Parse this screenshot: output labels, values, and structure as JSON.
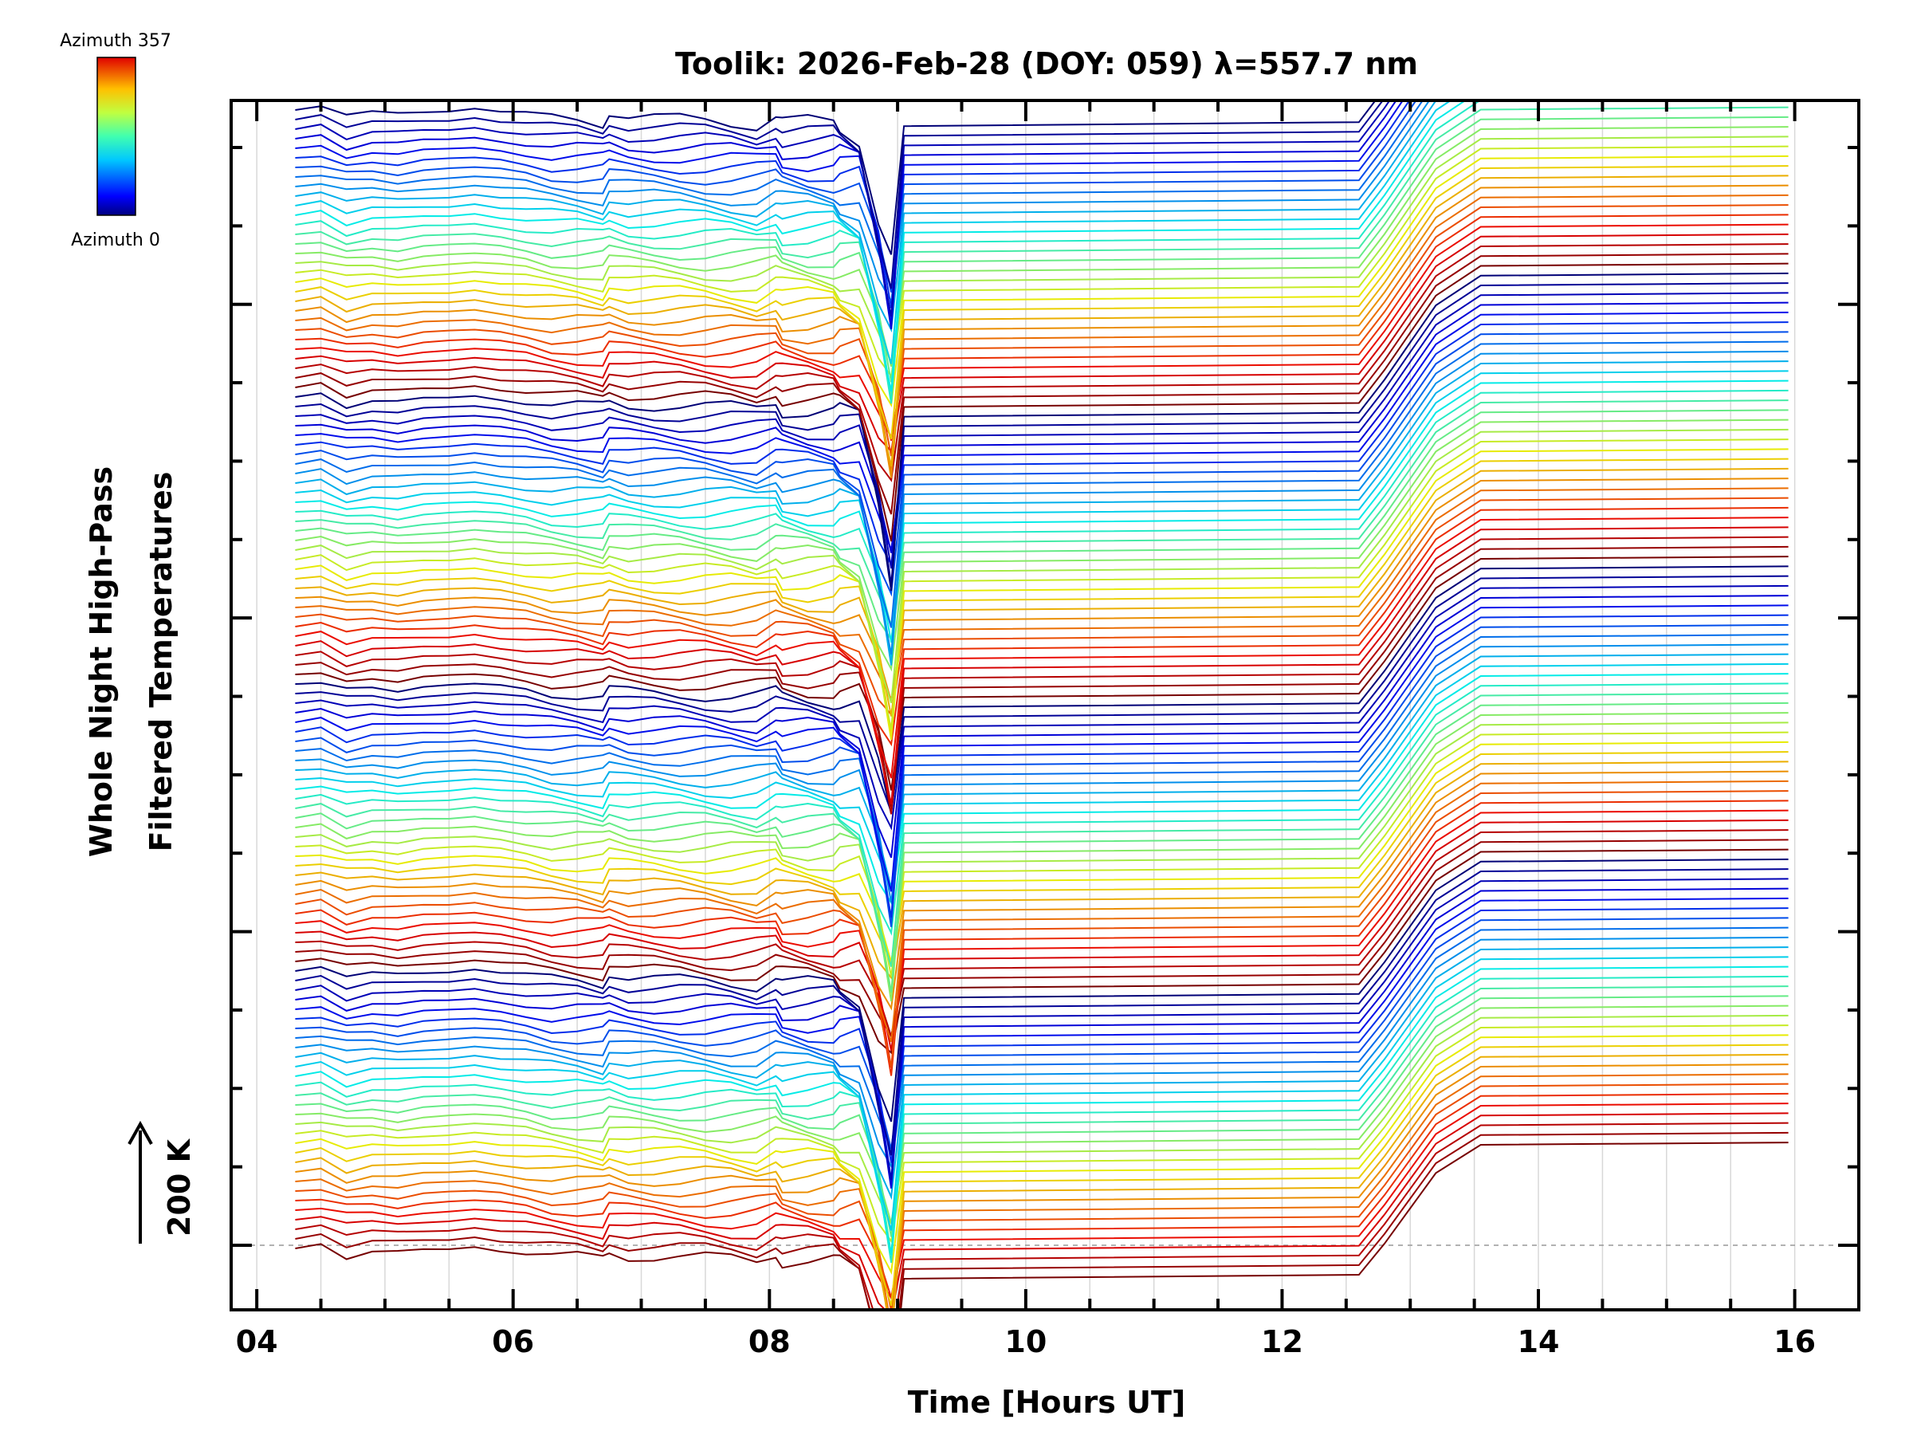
{
  "chart_data": {
    "type": "line",
    "title": "Toolik: 2026-Feb-28 (DOY: 059) λ=557.7 nm",
    "xlabel": "Time [Hours UT]",
    "ylabel_line1": "Whole Night High-Pass",
    "ylabel_line2": "Filtered Temperatures",
    "scale_label": "200 K",
    "xlim": [
      3.8,
      16.5
    ],
    "x_ticks": [
      4,
      6,
      8,
      10,
      12,
      14,
      16
    ],
    "x_tick_labels": [
      "04",
      "06",
      "08",
      "10",
      "12",
      "14",
      "16"
    ],
    "colorbar": {
      "top_label": "Azimuth 357",
      "bottom_label": "Azimuth 0",
      "min": 0,
      "max": 357
    },
    "series_count": 120,
    "series_description": "120 vertically offset traces, one per azimuth, colored by azimuth (jet colormap cycling 0 to 357 four times)",
    "data_window_hours": [
      9.0,
      12.6
    ],
    "x_sample_hours": [
      4.3,
      4.5,
      4.7,
      4.9,
      5.1,
      5.3,
      5.5,
      5.7,
      5.9,
      6.1,
      6.3,
      6.5,
      6.7,
      6.75,
      6.9,
      7.1,
      7.3,
      7.5,
      7.7,
      7.9,
      8.05,
      8.1,
      8.3,
      8.5,
      8.55,
      8.7,
      8.85,
      8.95,
      9.05,
      12.6,
      12.8,
      13.0,
      13.2,
      13.55,
      15.95
    ]
  }
}
